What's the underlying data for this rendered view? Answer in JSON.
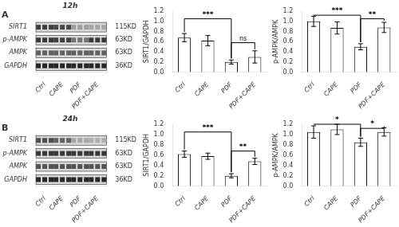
{
  "chart_data": [
    {
      "type": "heatmap",
      "title": "12h",
      "subtitle": "A",
      "categories": [
        "Ctrl",
        "CAPE",
        "PDF",
        "PDF+CAPE"
      ],
      "series": [
        {
          "name": "SIRT1",
          "values": [
            0.25,
            0.28,
            0.62,
            0.65
          ]
        },
        {
          "name": "p-AMPK",
          "values": [
            0.22,
            0.25,
            0.45,
            0.22
          ]
        },
        {
          "name": "AMPK",
          "values": [
            0.38,
            0.38,
            0.38,
            0.38
          ]
        },
        {
          "name": "GAPDH",
          "values": [
            0.15,
            0.15,
            0.15,
            0.15
          ]
        }
      ],
      "annotations": [
        "115KD",
        "63KD",
        "63KD",
        "36KD"
      ],
      "grid": false
    },
    {
      "type": "bar",
      "ylabel": "SIRT1/GAPDH",
      "categories": [
        "Ctrl",
        "CAPE",
        "PDF",
        "PDF+CAPE"
      ],
      "values": [
        0.68,
        0.62,
        0.2,
        0.3
      ],
      "errors": [
        0.08,
        0.1,
        0.04,
        0.12
      ],
      "color": "#ffffff",
      "ylim": [
        0,
        1.2
      ],
      "yticks": [
        {
          "value": 0,
          "label": "0.0"
        },
        0.2,
        0.4,
        0.6,
        0.8,
        {
          "value": 1,
          "label": "1.0"
        },
        1.2
      ],
      "annotations": [
        {
          "x1": 0,
          "x2": 2,
          "y": 1.05,
          "label": "***"
        },
        {
          "x1": 2,
          "x2": 3,
          "y": 0.58,
          "label": "ns"
        }
      ],
      "grid": false
    },
    {
      "type": "bar",
      "ylabel": "p-AMPK/AMPK",
      "categories": [
        "Ctrl",
        "CAPE",
        "PDF",
        "PDF+CAPE"
      ],
      "values": [
        1.0,
        0.87,
        0.5,
        0.88
      ],
      "errors": [
        0.1,
        0.12,
        0.06,
        0.1
      ],
      "color": "#ffffff",
      "ylim": [
        0,
        1.2
      ],
      "yticks": [
        {
          "value": 0,
          "label": "0.0"
        },
        0.2,
        0.4,
        0.6,
        0.8,
        {
          "value": 1,
          "label": "1.0"
        },
        1.2
      ],
      "annotations": [
        {
          "x1": 0,
          "x2": 2,
          "y": 1.12,
          "label": "***"
        },
        {
          "x1": 2,
          "x2": 3,
          "y": 1.05,
          "label": "**"
        }
      ],
      "grid": false
    },
    {
      "type": "heatmap",
      "title": "24h",
      "subtitle": "B",
      "categories": [
        "Ctrl",
        "CAPE",
        "PDF",
        "PDF+CAPE"
      ],
      "series": [
        {
          "name": "SIRT1",
          "values": [
            0.3,
            0.38,
            0.65,
            0.68
          ]
        },
        {
          "name": "p-AMPK",
          "values": [
            0.22,
            0.22,
            0.22,
            0.22
          ]
        },
        {
          "name": "AMPK",
          "values": [
            0.32,
            0.32,
            0.32,
            0.32
          ]
        },
        {
          "name": "GAPDH",
          "values": [
            0.15,
            0.15,
            0.15,
            0.15
          ]
        }
      ],
      "annotations": [
        "115KD",
        "63KD",
        "63KD",
        "36KD"
      ],
      "grid": false
    },
    {
      "type": "bar",
      "ylabel": "SIRT1/GAPDH",
      "categories": [
        "Ctrl",
        "CAPE",
        "PDF",
        "PDF+CAPE"
      ],
      "values": [
        0.62,
        0.58,
        0.2,
        0.48
      ],
      "errors": [
        0.06,
        0.06,
        0.04,
        0.06
      ],
      "color": "#ffffff",
      "ylim": [
        0,
        1.2
      ],
      "yticks": [
        {
          "value": 0,
          "label": "0.0"
        },
        0.2,
        0.4,
        0.6,
        0.8,
        {
          "value": 1,
          "label": "1.0"
        },
        1.2
      ],
      "annotations": [
        {
          "x1": 0,
          "x2": 2,
          "y": 1.05,
          "label": "***"
        },
        {
          "x1": 2,
          "x2": 3,
          "y": 0.68,
          "label": "**"
        }
      ],
      "grid": false
    },
    {
      "type": "bar",
      "ylabel": "p-AMPK/AMPK",
      "categories": [
        "Ctrl",
        "CAPE",
        "PDF",
        "PDF+CAPE"
      ],
      "values": [
        1.05,
        1.1,
        0.85,
        1.05
      ],
      "errors": [
        0.12,
        0.1,
        0.08,
        0.08
      ],
      "color": "#ffffff",
      "ylim": [
        0,
        1.2
      ],
      "yticks": [
        {
          "value": 0,
          "label": "0.0"
        },
        0.2,
        0.4,
        0.6,
        0.8,
        {
          "value": 1,
          "label": "1.0"
        },
        1.2
      ],
      "annotations": [
        {
          "x1": 0,
          "x2": 2,
          "y": 1.2,
          "label": "*"
        },
        {
          "x1": 2,
          "x2": 3,
          "y": 1.12,
          "label": "*"
        }
      ],
      "grid": false
    }
  ]
}
